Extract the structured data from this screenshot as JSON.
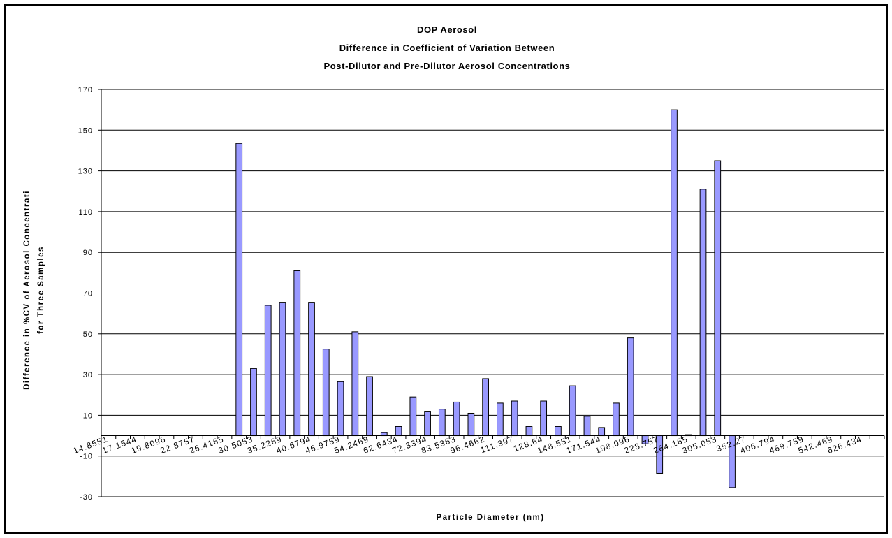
{
  "chart_data": {
    "type": "bar",
    "title_lines": [
      "DOP Aerosol",
      "Difference in Coefficient of Variation Between",
      "Post-Dilutor and Pre-Dilutor Aerosol Concentrations"
    ],
    "xlabel": "Particle Diameter (nm)",
    "ylabel_lines": [
      "Difference in %CV of Aerosol Concentrati",
      "for Three Samples"
    ],
    "ylim": [
      -30,
      170
    ],
    "yticks": [
      170,
      150,
      130,
      110,
      90,
      70,
      50,
      30,
      10,
      -10,
      -30
    ],
    "ytick_labels": [
      "170",
      "150",
      "130",
      "110",
      "90",
      "70",
      "50",
      "30",
      "10",
      "-10",
      "-30"
    ],
    "xtick_labels": [
      "14.8551",
      "17.1544",
      "19.8096",
      "22.8757",
      "26.4165",
      "30.5053",
      "35.2269",
      "40.6794",
      "46.9759",
      "54.2469",
      "62.6434",
      "72.3394",
      "83.5363",
      "96.4662",
      "111.397",
      "128.64",
      "148.551",
      "171.544",
      "198.096",
      "228.757",
      "264.165",
      "305.053",
      "352.27",
      "406.794",
      "469.759",
      "542.469",
      "626.434"
    ],
    "values": [
      0,
      0,
      0,
      0,
      0,
      0,
      0,
      0,
      0,
      143.5,
      33,
      64,
      65.5,
      81,
      65.5,
      42.5,
      26.5,
      51,
      29,
      1.5,
      4.5,
      19,
      12,
      13,
      16.5,
      11,
      28,
      16,
      17,
      4.5,
      17,
      4.5,
      24.5,
      9.5,
      4,
      16,
      48,
      -4,
      -18.5,
      160,
      0.5,
      121,
      135,
      -25.5,
      0,
      0,
      0,
      0,
      0,
      0,
      0,
      0,
      0,
      0
    ],
    "bar_color": "#9999ff",
    "grid": true
  }
}
